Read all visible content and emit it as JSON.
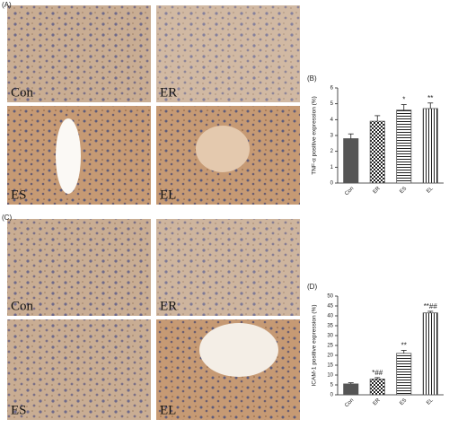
{
  "panels": {
    "A": "(A)",
    "C": "(C)",
    "A_labels": [
      "Con",
      "ER",
      "ES",
      "EL"
    ],
    "C_labels": [
      "Con",
      "ER",
      "ES",
      "EL"
    ]
  },
  "chart_data": [
    {
      "type": "bar",
      "panel": "(B)",
      "y_label": "TNF-α positive expression (%)",
      "categories": [
        "Con",
        "ER",
        "ES",
        "EL"
      ],
      "values": [
        2.8,
        3.9,
        4.6,
        4.7
      ],
      "errors": [
        0.3,
        0.35,
        0.35,
        0.35
      ],
      "annotations": [
        null,
        null,
        "*",
        "**"
      ],
      "patterns": [
        "solid",
        "checker",
        "hlines",
        "vlines"
      ],
      "color": "#555555",
      "ylim": [
        0,
        6
      ],
      "yticks": [
        0,
        1,
        2,
        3,
        4,
        5,
        6
      ]
    },
    {
      "type": "bar",
      "panel": "(D)",
      "y_label": "ICAM-1 positive expression (%)",
      "categories": [
        "Con",
        "ER",
        "ES",
        "EL"
      ],
      "values": [
        5.5,
        8,
        21,
        41.5
      ],
      "errors": [
        0.6,
        0.7,
        1.5,
        0.8
      ],
      "annotations": [
        null,
        "*##",
        "**",
        "**##"
      ],
      "patterns": [
        "solid",
        "checker",
        "hlines",
        "vlines"
      ],
      "color": "#555555",
      "ylim": [
        0,
        50
      ],
      "yticks": [
        0,
        5,
        10,
        15,
        20,
        25,
        30,
        35,
        40,
        45,
        50
      ]
    }
  ]
}
